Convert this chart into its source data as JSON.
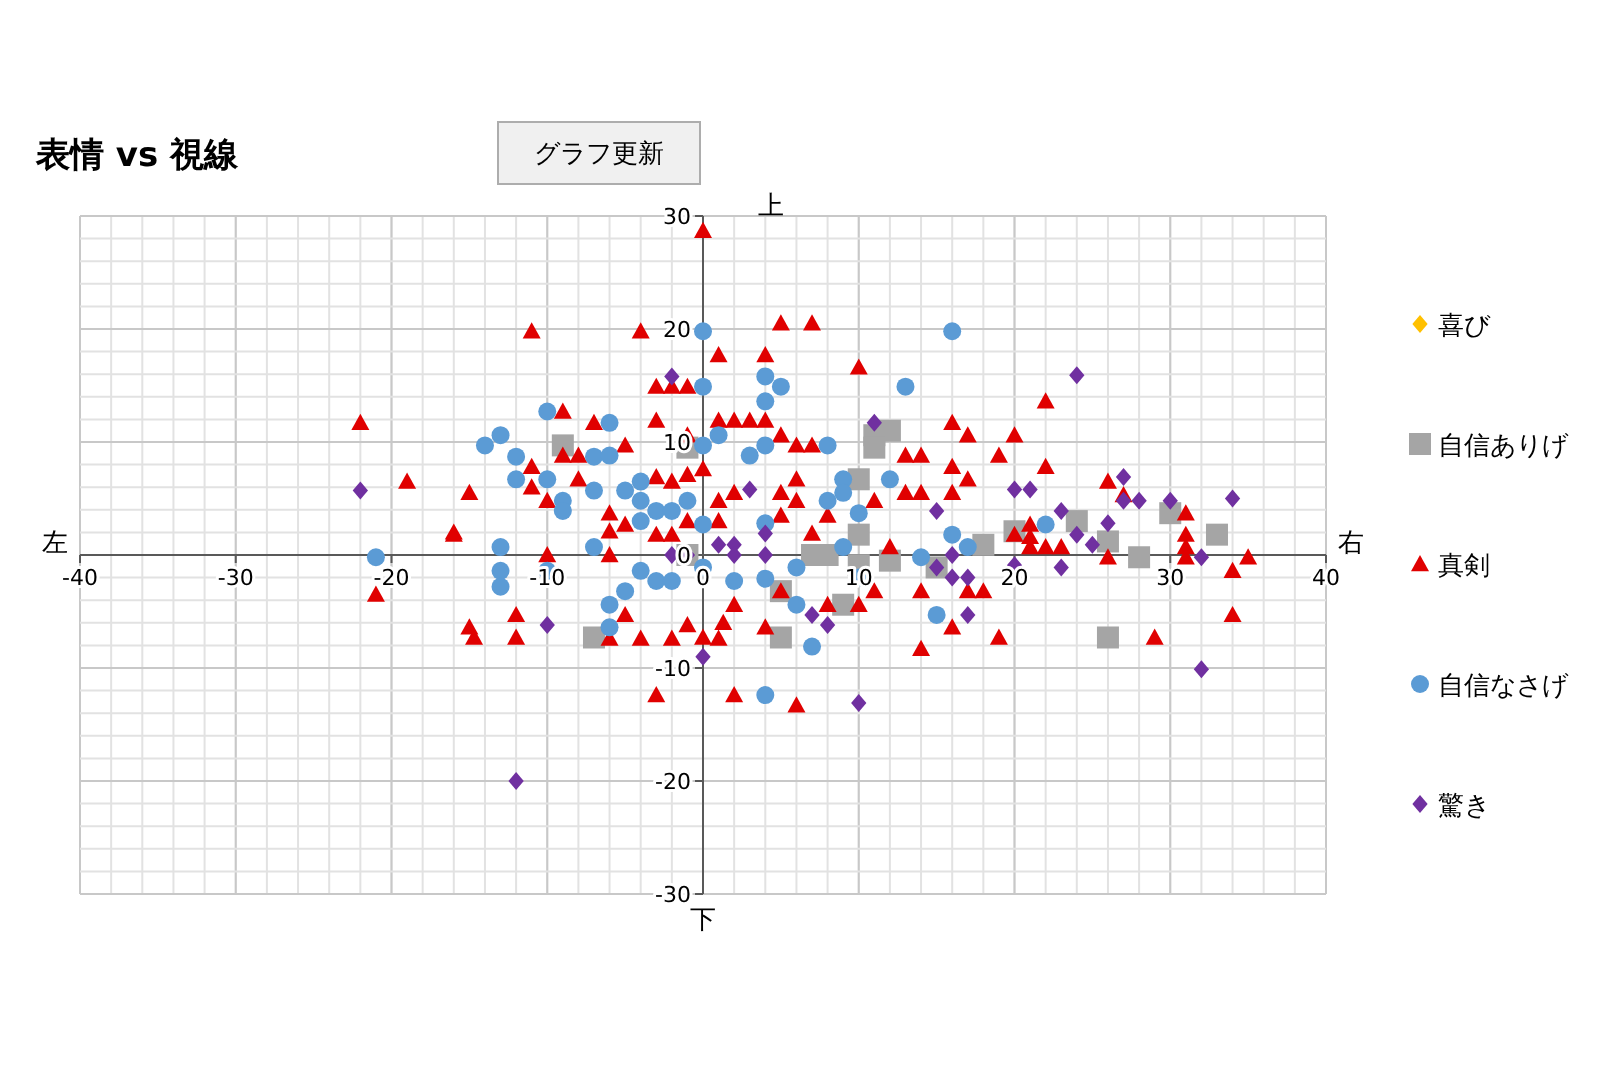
{
  "chart_data": {
    "type": "scatter",
    "title": "表情 vs 視線",
    "annotations": [
      "グラフ更新",
      "上",
      "下",
      "左",
      "右"
    ],
    "xlim": [
      -40,
      40
    ],
    "ylim": [
      -30,
      30
    ],
    "xticks": [
      -40,
      -30,
      -20,
      -10,
      0,
      10,
      20,
      30,
      40
    ],
    "yticks": [
      -30,
      -20,
      -10,
      0,
      10,
      20,
      30
    ],
    "grid": true,
    "legend": "right",
    "series": [
      {
        "name": "喜び",
        "color": "#ffc000",
        "marker": "diamond"
      },
      {
        "name": "自信ありげ",
        "color": "#a5a5a5",
        "marker": "square",
        "x": [
          -9,
          -1,
          11,
          12,
          11,
          10,
          10,
          7,
          8,
          18,
          20,
          24,
          30,
          33,
          26,
          28,
          26,
          -7,
          5,
          5,
          10,
          12,
          15,
          9,
          -1
        ],
        "values": [
          9.7,
          9.5,
          10.6,
          11,
          9.5,
          6.7,
          1.8,
          0,
          0,
          0.9,
          2.1,
          3,
          3.7,
          1.8,
          1.2,
          -0.2,
          -7.3,
          -7.3,
          -7.3,
          -3.2,
          -0.9,
          -0.5,
          -1.1,
          -4.4,
          0
        ]
      },
      {
        "name": "真剣",
        "color": "#e00000",
        "marker": "triangle",
        "x": [
          0,
          -11,
          -4,
          -22,
          -19,
          -15,
          -16,
          -21,
          -14.7,
          -12,
          -6,
          -3,
          0,
          1.3,
          2,
          6,
          -1,
          1,
          4,
          2,
          5,
          8,
          10,
          14,
          16,
          19,
          18,
          17,
          14,
          11,
          5,
          7,
          1,
          4,
          10,
          22,
          -1,
          1,
          2,
          3,
          4,
          5,
          6,
          7,
          16,
          17,
          20,
          13,
          14,
          19,
          22,
          16,
          17,
          16,
          13,
          14,
          11,
          5,
          6,
          6,
          8,
          2,
          1,
          -1,
          0,
          7,
          5,
          12,
          -1,
          1,
          -9,
          -7,
          -5,
          -9,
          -8,
          -11,
          -11,
          -10,
          -8,
          -6,
          -6,
          -5,
          -3,
          -3,
          -2,
          -1,
          -3,
          -2,
          -3,
          -2,
          -10,
          -15,
          -12,
          -5,
          -4,
          -2,
          -6,
          26,
          27,
          31,
          31,
          31,
          31,
          35,
          34,
          34,
          29,
          26,
          21,
          21,
          21,
          22,
          23,
          20,
          -16
        ],
        "values": [
          28.7,
          19.8,
          19.8,
          11.7,
          6.5,
          5.5,
          2,
          -3.5,
          -7.3,
          -7.3,
          -7.4,
          -12.4,
          -7.3,
          -6,
          -12.4,
          -13.3,
          -6.2,
          -7.4,
          -6.4,
          -4.4,
          -3.2,
          -4.4,
          -4.4,
          -8.3,
          -6.4,
          -7.3,
          -3.2,
          -3.2,
          -3.2,
          -3.2,
          20.5,
          20.5,
          17.7,
          17.7,
          16.6,
          13.6,
          14.9,
          11.9,
          11.9,
          11.9,
          11.9,
          10.6,
          9.7,
          9.7,
          11.7,
          10.6,
          10.6,
          8.8,
          8.8,
          8.8,
          7.8,
          7.8,
          6.7,
          5.5,
          5.5,
          5.5,
          4.8,
          5.5,
          6.7,
          4.8,
          3.5,
          5.5,
          4.8,
          7.1,
          7.6,
          1.9,
          3.5,
          0.7,
          3,
          3,
          12.7,
          11.7,
          9.7,
          8.8,
          8.8,
          7.8,
          6,
          4.8,
          6.7,
          3.7,
          2.1,
          2.7,
          11.9,
          6.9,
          6.5,
          10.6,
          14.9,
          14.9,
          1.8,
          1.8,
          0,
          -6.4,
          -5.3,
          -5.3,
          -7.4,
          -7.4,
          0,
          6.5,
          5.3,
          3.7,
          1.8,
          0.7,
          -0.2,
          -0.2,
          -1.4,
          -5.3,
          -7.3,
          -0.2,
          2.7,
          1.6,
          0.7,
          0.7,
          0.7,
          1.8,
          1.8
        ]
      },
      {
        "name": "自信なさげ",
        "color": "#5b9bd5",
        "marker": "circle",
        "x": [
          0,
          16,
          -10,
          -6,
          -14,
          -13,
          -12,
          -12,
          -10,
          -9,
          -9,
          -7,
          -6,
          -7,
          -5,
          -4,
          -4,
          -3,
          -2,
          0,
          0,
          -13,
          -7,
          -4,
          0,
          -21,
          4,
          5,
          4,
          13,
          1,
          3,
          4,
          8,
          9,
          9,
          8,
          10,
          12,
          4,
          16,
          22,
          9,
          -1,
          17,
          6,
          2,
          4,
          6,
          7,
          4,
          15,
          10,
          14,
          -13,
          -13,
          -10,
          -6,
          -5,
          -6,
          -4,
          -3,
          -2,
          0
        ],
        "values": [
          19.8,
          19.8,
          12.7,
          11.7,
          9.7,
          10.6,
          8.7,
          6.7,
          6.7,
          4.8,
          3.9,
          8.7,
          8.8,
          5.7,
          5.7,
          6.5,
          4.8,
          3.9,
          3.9,
          14.9,
          9.7,
          0.7,
          0.7,
          3,
          2.7,
          -0.2,
          15.8,
          14.9,
          13.6,
          14.9,
          10.6,
          8.8,
          9.7,
          9.7,
          6.7,
          5.5,
          4.8,
          3.7,
          6.7,
          2.8,
          1.8,
          2.7,
          0.7,
          4.8,
          0.7,
          -1.1,
          -2.3,
          -2.1,
          -4.4,
          -8.1,
          -12.4,
          -5.3,
          -2,
          -0.2,
          -1.4,
          -2.8,
          -1.4,
          -4.4,
          -3.2,
          -6.4,
          -1.4,
          -2.3,
          -2.3,
          -1.1
        ]
      },
      {
        "name": "驚き",
        "color": "#7030a0",
        "marker": "diamond",
        "x": [
          -22,
          -2,
          -12,
          11,
          24,
          20,
          21,
          15,
          23,
          3,
          4,
          1,
          2,
          -1,
          -10,
          0,
          -2,
          8,
          7,
          10,
          17,
          16,
          17,
          15,
          16,
          20,
          23,
          2,
          4,
          27,
          27,
          28,
          30,
          34,
          26,
          24,
          25,
          32,
          32
        ],
        "values": [
          5.7,
          15.8,
          -20,
          11.7,
          15.9,
          5.8,
          5.8,
          3.9,
          3.9,
          5.8,
          1.9,
          0.9,
          0.9,
          0,
          -6.2,
          -9,
          0,
          -6.2,
          -5.3,
          -13.1,
          -5.3,
          -2,
          -2,
          -1.1,
          0,
          -0.9,
          -1.1,
          0,
          0,
          6.9,
          4.8,
          4.8,
          4.8,
          5,
          2.8,
          1.8,
          0.9,
          -0.2,
          -10.1
        ]
      }
    ]
  }
}
